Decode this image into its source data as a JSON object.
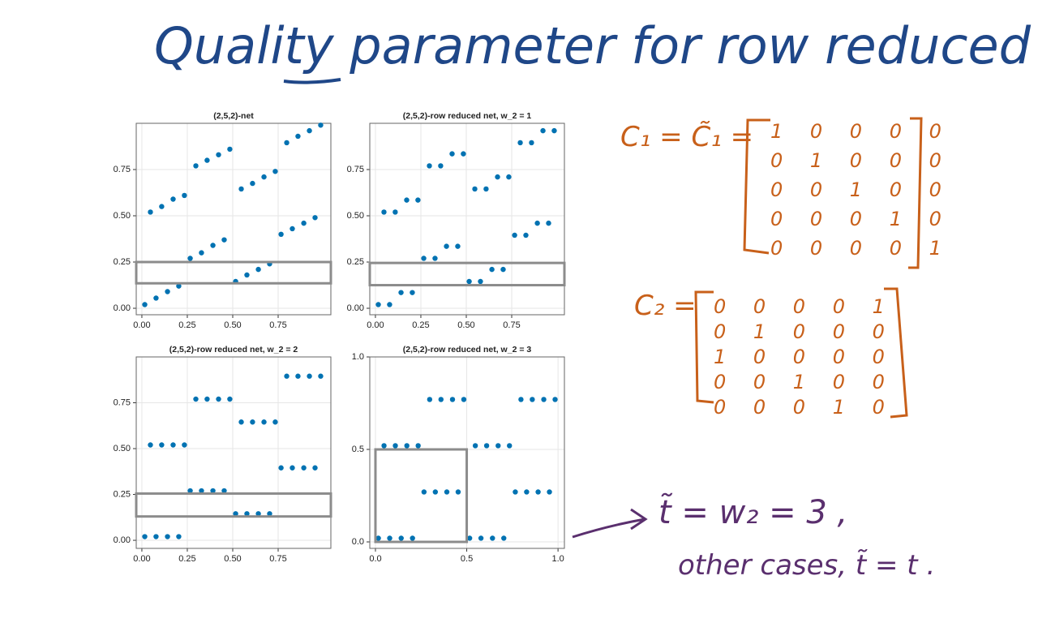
{
  "title": "Quality parameter for row reduced",
  "chart_data": [
    {
      "type": "scatter",
      "title": "(2,5,2)-net",
      "color": "#0072b2",
      "grid": true,
      "x": [
        0.016,
        0.047,
        0.078,
        0.109,
        0.141,
        0.172,
        0.203,
        0.234,
        0.266,
        0.297,
        0.328,
        0.359,
        0.391,
        0.422,
        0.453,
        0.484,
        0.516,
        0.547,
        0.578,
        0.609,
        0.641,
        0.672,
        0.703,
        0.734,
        0.766,
        0.797,
        0.828,
        0.859,
        0.891,
        0.922,
        0.953,
        0.984
      ],
      "values": [
        0.02,
        0.52,
        0.055,
        0.55,
        0.09,
        0.59,
        0.12,
        0.61,
        0.27,
        0.77,
        0.3,
        0.8,
        0.34,
        0.83,
        0.37,
        0.86,
        0.145,
        0.645,
        0.18,
        0.675,
        0.21,
        0.71,
        0.24,
        0.74,
        0.4,
        0.895,
        0.43,
        0.93,
        0.46,
        0.96,
        0.49,
        0.99
      ],
      "xlim": [
        -0.031,
        1.04
      ],
      "ylim": [
        -0.035,
        1.0
      ],
      "xticks": [
        {
          "value": 0,
          "label": "0.00"
        },
        0.25,
        {
          "value": 0.5,
          "label": "0.50"
        },
        0.75
      ],
      "yticks": [
        {
          "value": 0,
          "label": "0.00"
        },
        0.25,
        {
          "value": 0.5,
          "label": "0.50"
        },
        0.75
      ],
      "highlight": {
        "x": [
          -0.031,
          1.04
        ],
        "y": [
          0.135,
          0.25
        ]
      }
    },
    {
      "type": "scatter",
      "title": "(2,5,2)-row reduced net, w_2 = 1",
      "color": "#0072b2",
      "grid": true,
      "x": [
        0.016,
        0.047,
        0.078,
        0.109,
        0.141,
        0.172,
        0.203,
        0.234,
        0.266,
        0.297,
        0.328,
        0.359,
        0.391,
        0.422,
        0.453,
        0.484,
        0.516,
        0.547,
        0.578,
        0.609,
        0.641,
        0.672,
        0.703,
        0.734,
        0.766,
        0.797,
        0.828,
        0.859,
        0.891,
        0.922,
        0.953,
        0.984
      ],
      "values": [
        0.02,
        0.52,
        0.02,
        0.52,
        0.085,
        0.585,
        0.085,
        0.585,
        0.27,
        0.77,
        0.27,
        0.77,
        0.335,
        0.835,
        0.335,
        0.835,
        0.145,
        0.645,
        0.145,
        0.645,
        0.21,
        0.71,
        0.21,
        0.71,
        0.395,
        0.895,
        0.395,
        0.895,
        0.46,
        0.96,
        0.46,
        0.96
      ],
      "xlim": [
        -0.031,
        1.04
      ],
      "ylim": [
        -0.035,
        1.0
      ],
      "xticks": [
        {
          "value": 0,
          "label": "0.00"
        },
        0.25,
        {
          "value": 0.5,
          "label": "0.50"
        },
        0.75
      ],
      "yticks": [
        {
          "value": 0,
          "label": "0.00"
        },
        0.25,
        {
          "value": 0.5,
          "label": "0.50"
        },
        0.75
      ],
      "highlight": {
        "x": [
          -0.031,
          1.04
        ],
        "y": [
          0.125,
          0.245
        ]
      }
    },
    {
      "type": "scatter",
      "title": "(2,5,2)-row reduced net, w_2 = 2",
      "color": "#0072b2",
      "grid": true,
      "x": [
        0.016,
        0.047,
        0.078,
        0.109,
        0.141,
        0.172,
        0.203,
        0.234,
        0.266,
        0.297,
        0.328,
        0.359,
        0.391,
        0.422,
        0.453,
        0.484,
        0.516,
        0.547,
        0.578,
        0.609,
        0.641,
        0.672,
        0.703,
        0.734,
        0.766,
        0.797,
        0.828,
        0.859,
        0.891,
        0.922,
        0.953,
        0.984
      ],
      "values": [
        0.02,
        0.52,
        0.02,
        0.52,
        0.02,
        0.52,
        0.02,
        0.52,
        0.27,
        0.77,
        0.27,
        0.77,
        0.27,
        0.77,
        0.27,
        0.77,
        0.145,
        0.645,
        0.145,
        0.645,
        0.145,
        0.645,
        0.145,
        0.645,
        0.395,
        0.895,
        0.395,
        0.895,
        0.395,
        0.895,
        0.395,
        0.895
      ],
      "xlim": [
        -0.031,
        1.04
      ],
      "ylim": [
        -0.044,
        1.0
      ],
      "xticks": [
        {
          "value": 0,
          "label": "0.00"
        },
        0.25,
        {
          "value": 0.5,
          "label": "0.50"
        },
        0.75
      ],
      "yticks": [
        {
          "value": 0,
          "label": "0.00"
        },
        0.25,
        {
          "value": 0.5,
          "label": "0.50"
        },
        0.75
      ],
      "highlight": {
        "x": [
          -0.031,
          1.04
        ],
        "y": [
          0.13,
          0.255
        ]
      }
    },
    {
      "type": "scatter",
      "title": "(2,5,2)-row reduced net, w_2 = 3",
      "color": "#0072b2",
      "grid": true,
      "x": [
        0.016,
        0.047,
        0.078,
        0.109,
        0.141,
        0.172,
        0.203,
        0.234,
        0.266,
        0.297,
        0.328,
        0.359,
        0.391,
        0.422,
        0.453,
        0.484,
        0.516,
        0.547,
        0.578,
        0.609,
        0.641,
        0.672,
        0.703,
        0.734,
        0.766,
        0.797,
        0.828,
        0.859,
        0.891,
        0.922,
        0.953,
        0.984
      ],
      "values": [
        0.02,
        0.52,
        0.02,
        0.52,
        0.02,
        0.52,
        0.02,
        0.52,
        0.27,
        0.77,
        0.27,
        0.77,
        0.27,
        0.77,
        0.27,
        0.77,
        0.02,
        0.52,
        0.02,
        0.52,
        0.02,
        0.52,
        0.02,
        0.52,
        0.27,
        0.77,
        0.27,
        0.77,
        0.27,
        0.77,
        0.27,
        0.77
      ],
      "xlim": [
        -0.031,
        1.035
      ],
      "ylim": [
        -0.035,
        1.0
      ],
      "xticks": [
        {
          "value": 0,
          "label": "0.0"
        },
        0.5,
        {
          "value": 1,
          "label": "1.0"
        }
      ],
      "yticks": [
        {
          "value": 0,
          "label": "0.0"
        },
        0.5,
        {
          "value": 1,
          "label": "1.0"
        }
      ],
      "highlight": {
        "x": [
          0,
          0.5
        ],
        "y": [
          0,
          0.5
        ]
      }
    }
  ],
  "matrix_1": {
    "label": "C₁ = C̃₁ =",
    "rows": [
      "1 0 0 0 0",
      "0 1 0 0 0",
      "0 0 1 0 0",
      "0 0 0 1 0",
      "0 0 0 0 1"
    ]
  },
  "matrix_2": {
    "label": "C₂ =",
    "rows": [
      "0 0 0 0 1",
      "0 1 0 0 0",
      "1 0 0 0 0",
      "0 0 1 0 0",
      "0 0 0 1 0"
    ]
  },
  "notes": [
    "t̃ = w₂ = 3 ,",
    "other cases, t̃ = t ."
  ]
}
